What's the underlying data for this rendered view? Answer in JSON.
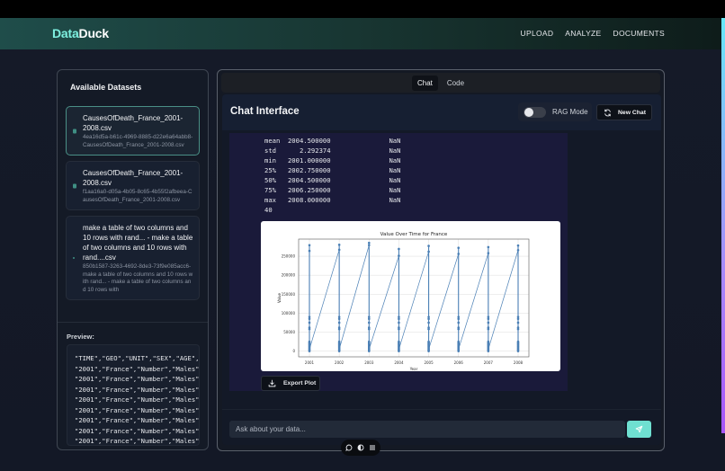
{
  "header": {
    "logo_part1": "Data",
    "logo_part2": "Duck",
    "nav": [
      "UPLOAD",
      "ANALYZE",
      "DOCUMENTS"
    ]
  },
  "sidebar": {
    "title": "Available Datasets",
    "datasets": [
      {
        "name": "CausesOfDeath_France_2001-2008.csv",
        "id": "4ea16d5a-b61c-4969-8885-d22e6a64abb8-CausesOfDeath_France_2001-2008.csv",
        "selected": true
      },
      {
        "name": "CausesOfDeath_France_2001-2008.csv",
        "id": "f1aa16a0-d05a-4b05-8c65-4b55f2afbeea-CausesOfDeath_France_2001-2008.csv",
        "selected": false
      },
      {
        "name": "make a table of two columns and 10 rows with rand... - make a table of two columns and 10 rows with rand....csv",
        "id": "850b1587-3263-4692-8de3-73f9e085acc6-make a table of two columns and 10 rows with rand... - make a table of two columns and 10 rows with",
        "selected": false
      }
    ],
    "preview_label": "Preview:",
    "preview_lines": [
      "\"TIME\",\"GEO\",\"UNIT\",\"SEX\",\"AGE\",\"",
      "\"2001\",\"France\",\"Number\",\"Males\",",
      "\"2001\",\"France\",\"Number\",\"Males\",",
      "\"2001\",\"France\",\"Number\",\"Males\",",
      "\"2001\",\"France\",\"Number\",\"Males\",",
      "\"2001\",\"France\",\"Number\",\"Males\",",
      "\"2001\",\"France\",\"Number\",\"Males\",",
      "\"2001\",\"France\",\"Number\",\"Males\",",
      "\"2001\",\"France\",\"Number\",\"Males\","
    ]
  },
  "main": {
    "tabs": [
      {
        "label": "Chat",
        "active": true
      },
      {
        "label": "Code",
        "active": false
      }
    ],
    "chat_title": "Chat Interface",
    "rag_mode_label": "RAG Mode",
    "rag_mode_on": false,
    "new_chat_label": "New Chat",
    "stats_rows": [
      {
        "stat": "mean",
        "value": "2004.500000",
        "other": "NaN"
      },
      {
        "stat": "std",
        "value": "   2.292374",
        "other": "NaN"
      },
      {
        "stat": "min",
        "value": "2001.000000",
        "other": "NaN"
      },
      {
        "stat": "25%",
        "value": "2002.750000",
        "other": "NaN"
      },
      {
        "stat": "50%",
        "value": "2004.500000",
        "other": "NaN"
      },
      {
        "stat": "75%",
        "value": "2006.250000",
        "other": "NaN"
      },
      {
        "stat": "max",
        "value": "2008.000000",
        "other": "NaN"
      }
    ],
    "stats_trailer": "40",
    "export_label": "Export Plot",
    "input_placeholder": "Ask about your data...",
    "input_value": ""
  },
  "chart_data": {
    "type": "line",
    "title": "Value Over Time for France",
    "xlabel": "Year",
    "ylabel": "Value",
    "x_ticks": [
      "2001",
      "2002",
      "2003",
      "2004",
      "2005",
      "2006",
      "2007",
      "2008"
    ],
    "y_ticks": [
      0,
      50000,
      100000,
      150000,
      200000,
      250000
    ],
    "ylim": [
      -15000,
      295000
    ],
    "grid": true,
    "series": [
      {
        "name": "Value",
        "color": "#4a7fb5",
        "marker": "o",
        "per_year_max": [
          279000,
          280000,
          285000,
          269000,
          277000,
          272000,
          274000,
          278000
        ],
        "per_year_second": [
          264000,
          267000,
          279000,
          251000,
          262000,
          256000,
          258000,
          266000
        ],
        "per_year_cluster_mid": [
          90000,
          90000,
          90000,
          90000,
          90000,
          90000,
          90000,
          90000
        ],
        "per_year_cluster_low_max": [
          27000,
          27000,
          27000,
          25000,
          25000,
          25000,
          25000,
          27000
        ],
        "note": "Many points at each year from ~0 to ~280000; lines zigzag from min of one year to max of next year"
      }
    ]
  },
  "floating_toolbar": {
    "icons": [
      "chat-bubble-icon",
      "contrast-icon",
      "list-icon"
    ]
  }
}
